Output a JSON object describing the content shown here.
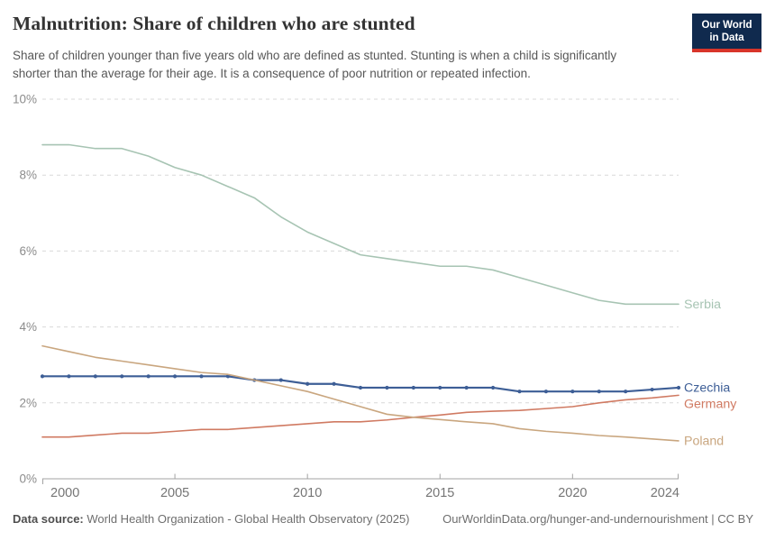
{
  "header": {
    "title": "Malnutrition: Share of children who are stunted",
    "subtitle_line1": "Share of children younger than five years old who are defined as stunted. Stunting is when a child is significantly",
    "subtitle_line2": "shorter than the average for their age. It is a consequence of poor nutrition or repeated infection.",
    "logo": {
      "line1": "Our World",
      "line2": "in Data",
      "bg_color": "#102a4e",
      "stripe_color": "#d8352a"
    }
  },
  "chart_data": {
    "type": "line",
    "title": "Malnutrition: Share of children who are stunted",
    "xlabel": "",
    "ylabel": "",
    "xlim": [
      2000,
      2024
    ],
    "ylim": [
      0,
      10
    ],
    "grid": "dashed-horizontal",
    "legend_position": "line-end-labels-right",
    "x": [
      2000,
      2001,
      2002,
      2003,
      2004,
      2005,
      2006,
      2007,
      2008,
      2009,
      2010,
      2011,
      2012,
      2013,
      2014,
      2015,
      2016,
      2017,
      2018,
      2019,
      2020,
      2021,
      2022,
      2023,
      2024
    ],
    "y_ticks": {
      "values": [
        0,
        2,
        4,
        6,
        8,
        10
      ],
      "labels": [
        "0%",
        "2%",
        "4%",
        "6%",
        "8%",
        "10%"
      ]
    },
    "x_ticks": {
      "values": [
        2000,
        2005,
        2010,
        2015,
        2020,
        2024
      ],
      "labels": [
        "2000",
        "2005",
        "2010",
        "2015",
        "2020",
        "2024"
      ]
    },
    "series": [
      {
        "name": "Serbia",
        "color": "#a7c4b3",
        "markers": false,
        "values": [
          8.8,
          8.8,
          8.7,
          8.7,
          8.5,
          8.2,
          8.0,
          7.7,
          7.4,
          6.9,
          6.5,
          6.2,
          5.9,
          5.8,
          5.7,
          5.6,
          5.6,
          5.5,
          5.3,
          5.1,
          4.9,
          4.7,
          4.6,
          4.6,
          4.6
        ]
      },
      {
        "name": "Czechia",
        "color": "#3d5e96",
        "markers": true,
        "values": [
          2.7,
          2.7,
          2.7,
          2.7,
          2.7,
          2.7,
          2.7,
          2.7,
          2.6,
          2.6,
          2.5,
          2.5,
          2.4,
          2.4,
          2.4,
          2.4,
          2.4,
          2.4,
          2.3,
          2.3,
          2.3,
          2.3,
          2.3,
          2.35,
          2.4
        ]
      },
      {
        "name": "Germany",
        "color": "#d07a62",
        "markers": false,
        "values": [
          1.1,
          1.1,
          1.15,
          1.2,
          1.2,
          1.25,
          1.3,
          1.3,
          1.35,
          1.4,
          1.45,
          1.5,
          1.5,
          1.55,
          1.62,
          1.68,
          1.75,
          1.78,
          1.8,
          1.85,
          1.9,
          2.0,
          2.08,
          2.13,
          2.2
        ]
      },
      {
        "name": "Poland",
        "color": "#c9a67f",
        "markers": false,
        "values": [
          3.5,
          3.35,
          3.2,
          3.1,
          3.0,
          2.9,
          2.8,
          2.75,
          2.6,
          2.45,
          2.3,
          2.1,
          1.9,
          1.7,
          1.62,
          1.56,
          1.5,
          1.45,
          1.32,
          1.25,
          1.2,
          1.14,
          1.1,
          1.05,
          1.0
        ]
      }
    ]
  },
  "footer": {
    "source_label": "Data source:",
    "source_text": " World Health Organization - Global Health Observatory (2025)",
    "link_text": "OurWorldinData.org/hunger-and-undernourishment | CC BY"
  }
}
